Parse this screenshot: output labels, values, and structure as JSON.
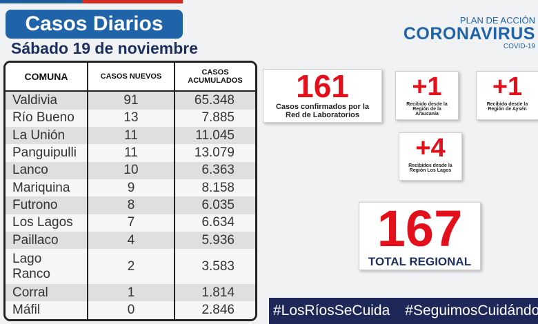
{
  "header": {
    "title": "Casos Diarios",
    "date": "Sábado 19 de noviembre"
  },
  "logo": {
    "line1": "PLAN DE ACCIÓN",
    "line2": "CORONAVIRUS",
    "line3": "COVID-19"
  },
  "table": {
    "headers": [
      "COMUNA",
      "CASOS NUEVOS",
      "CASOS ACUMULADOS"
    ],
    "rows": [
      [
        "Valdivia",
        "91",
        "65.348"
      ],
      [
        "Río Bueno",
        "13",
        "7.885"
      ],
      [
        "La Unión",
        "11",
        "11.045"
      ],
      [
        "Panguipulli",
        "11",
        "13.079"
      ],
      [
        "Lanco",
        "10",
        "6.363"
      ],
      [
        "Mariquina",
        "9",
        "8.158"
      ],
      [
        "Futrono",
        "8",
        "6.035"
      ],
      [
        "Los Lagos",
        "7",
        "6.634"
      ],
      [
        "Paillaco",
        "4",
        "5.936"
      ],
      [
        "Lago Ranco",
        "2",
        "3.583"
      ],
      [
        "Corral",
        "1",
        "1.814"
      ],
      [
        "Máfil",
        "0",
        "2.846"
      ]
    ]
  },
  "cards": [
    {
      "value": "161",
      "caption": "Casos confirmados  por la Red de Laboratorios"
    },
    {
      "value": "+1",
      "caption": "Recibido desde la Región de la Araucanía"
    },
    {
      "value": "+1",
      "caption": "Recibido  desde la Región de Aysén"
    },
    {
      "value": "+4",
      "caption": "Recibidos desde la Región Los Lagos"
    },
    {
      "value": "167",
      "caption": "TOTAL REGIONAL"
    }
  ],
  "hashtags": [
    "#LosRíosSeCuida",
    "#SeguimosCuidándonos"
  ]
}
